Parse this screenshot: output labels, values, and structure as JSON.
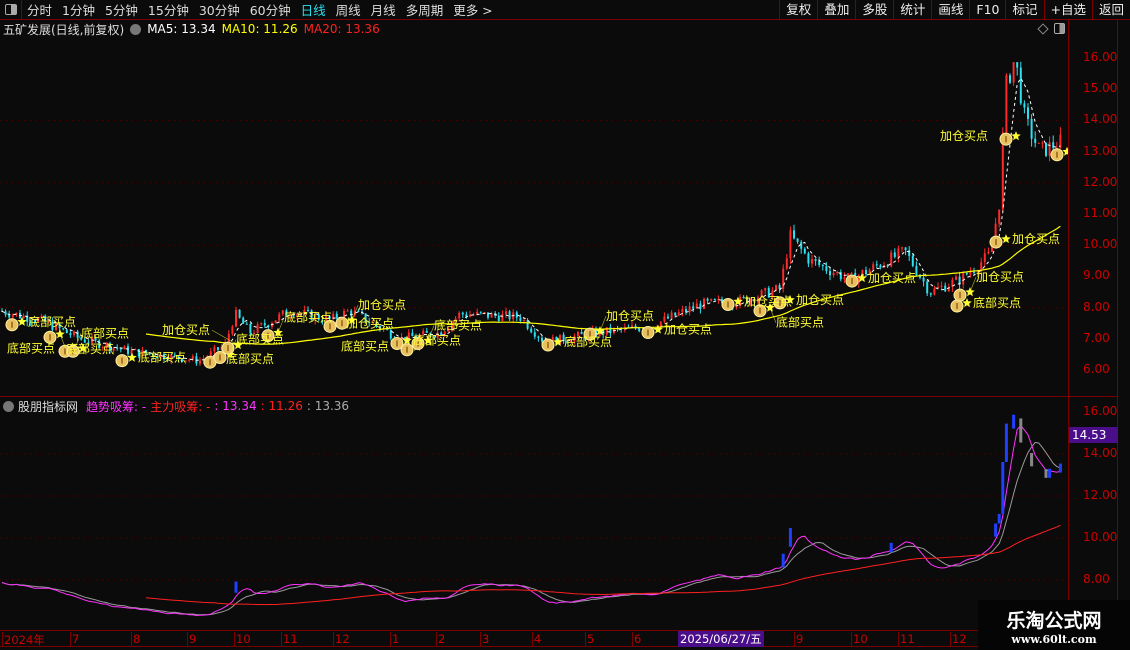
{
  "toolbar": {
    "periods": [
      "分时",
      "1分钟",
      "5分钟",
      "15分钟",
      "30分钟",
      "60分钟",
      "日线",
      "周线",
      "月线",
      "多周期",
      "更多 >"
    ],
    "active_period": "日线",
    "right_buttons": [
      "复权",
      "叠加",
      "多股",
      "统计",
      "画线",
      "F10",
      "标记",
      "+自选",
      "返回"
    ]
  },
  "main": {
    "title": "五矿发展(日线,前复权)",
    "ma5": "MA5: 13.34",
    "ma10": "MA10: 11.26",
    "ma20": "MA20: 13.36",
    "y_ticks": [
      "16.00",
      "15.00",
      "14.00",
      "13.00",
      "12.00",
      "11.00",
      "10.00",
      "9.00",
      "8.00",
      "7.00",
      "6.00"
    ]
  },
  "indicator": {
    "name": "股朋指标网",
    "trend_label": "趋势吸筹: -",
    "main_label": "主力吸筹: -",
    "v1": ": 13.34",
    "v2": ": 11.26",
    "v3": ": 13.36",
    "y_ticks": [
      "16.00",
      "14.00",
      "12.00",
      "10.00",
      "8.00"
    ],
    "cursor_value": "14.53"
  },
  "time_axis": {
    "labels": [
      "2024年",
      "7",
      "8",
      "9",
      "10",
      "11",
      "12",
      "1",
      "2",
      "3",
      "4",
      "5",
      "6",
      "9",
      "10",
      "11",
      "12"
    ],
    "cursor_date": "2025/06/27/五"
  },
  "watermark": {
    "title": "乐淘公式网",
    "url": "www.60lt.com"
  },
  "colors": {
    "up": "#ff2a2a",
    "down": "#2de0f0",
    "ma_long": "#ffff00",
    "trend": "#ff33ff",
    "main": "#ff2020",
    "signal": "#ffff33",
    "cursor": "#4b0e8a"
  },
  "chart_data": {
    "type": "candlestick",
    "ylim": [
      5.6,
      16.6
    ],
    "close_path": [
      [
        0,
        7.9
      ],
      [
        40,
        7.6
      ],
      [
        80,
        7.0
      ],
      [
        130,
        6.6
      ],
      [
        200,
        6.3
      ],
      [
        225,
        6.8
      ],
      [
        235,
        7.8
      ],
      [
        250,
        7.2
      ],
      [
        290,
        7.9
      ],
      [
        330,
        7.6
      ],
      [
        350,
        7.9
      ],
      [
        400,
        7.0
      ],
      [
        440,
        7.2
      ],
      [
        460,
        7.8
      ],
      [
        520,
        7.7
      ],
      [
        545,
        6.9
      ],
      [
        600,
        7.2
      ],
      [
        650,
        7.4
      ],
      [
        700,
        8.1
      ],
      [
        740,
        8.2
      ],
      [
        780,
        8.6
      ],
      [
        790,
        10.3
      ],
      [
        810,
        9.5
      ],
      [
        850,
        8.9
      ],
      [
        905,
        9.8
      ],
      [
        930,
        8.5
      ],
      [
        960,
        8.9
      ],
      [
        990,
        9.7
      ],
      [
        1000,
        11.5
      ],
      [
        1005,
        15.0
      ],
      [
        1015,
        16.0
      ],
      [
        1025,
        14.0
      ],
      [
        1040,
        13.0
      ],
      [
        1060,
        13.3
      ]
    ],
    "signals": [
      {
        "x": 12,
        "p": 7.45,
        "label": "底部买点"
      },
      {
        "x": 50,
        "p": 7.05,
        "label": "底部买点"
      },
      {
        "x": 65,
        "p": 6.6,
        "label": "底部买点"
      },
      {
        "x": 73,
        "p": 6.6,
        "label": "底部买点"
      },
      {
        "x": 122,
        "p": 6.3,
        "label": "底部买点"
      },
      {
        "x": 210,
        "p": 6.25,
        "label": "底部买点"
      },
      {
        "x": 220,
        "p": 6.4,
        "label": "底部买点"
      },
      {
        "x": 228,
        "p": 6.7,
        "label": "加仓买点"
      },
      {
        "x": 268,
        "p": 7.1,
        "label": "底部买点"
      },
      {
        "x": 330,
        "p": 7.4,
        "label": "加仓买点"
      },
      {
        "x": 342,
        "p": 7.5,
        "label": "加仓买点"
      },
      {
        "x": 397,
        "p": 6.85,
        "label": "底部买点"
      },
      {
        "x": 407,
        "p": 6.65,
        "label": "底部买点"
      },
      {
        "x": 418,
        "p": 6.85,
        "label": "底部买点"
      },
      {
        "x": 548,
        "p": 6.8,
        "label": "底部买点"
      },
      {
        "x": 590,
        "p": 7.15,
        "label": "加仓买点"
      },
      {
        "x": 648,
        "p": 7.2,
        "label": "加仓买点"
      },
      {
        "x": 728,
        "p": 8.1,
        "label": "加仓买点"
      },
      {
        "x": 760,
        "p": 7.9,
        "label": "底部买点"
      },
      {
        "x": 780,
        "p": 8.15,
        "label": "加仓买点"
      },
      {
        "x": 852,
        "p": 8.85,
        "label": "加仓买点"
      },
      {
        "x": 957,
        "p": 8.05,
        "label": "底部买点"
      },
      {
        "x": 960,
        "p": 8.4,
        "label": "加仓买点"
      },
      {
        "x": 996,
        "p": 10.1,
        "label": "加仓买点"
      },
      {
        "x": 1006,
        "p": 13.4,
        "label": "加仓买点"
      },
      {
        "x": 1057,
        "p": 12.9,
        "label": ""
      }
    ]
  }
}
